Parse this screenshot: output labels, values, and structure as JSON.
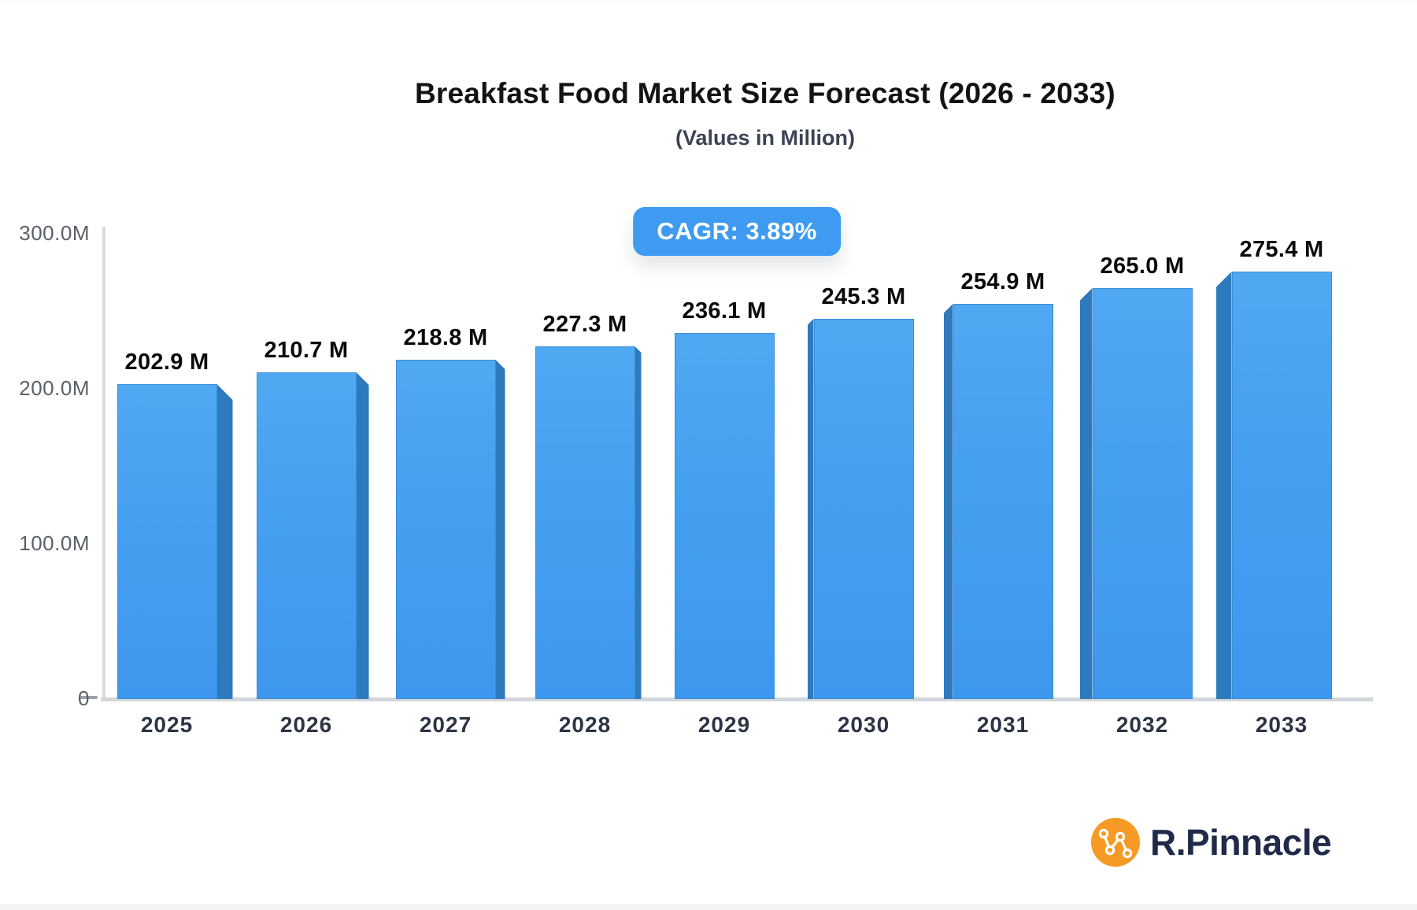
{
  "header": {
    "title": "Breakfast Food Market Size Forecast (2026 - 2033)",
    "subtitle": "(Values in Million)"
  },
  "badge": {
    "label": "CAGR: 3.89%",
    "background": "#3e9bf1",
    "text_color": "#ffffff"
  },
  "chart_data": {
    "type": "bar",
    "title": "Breakfast Food Market Size Forecast (2026 - 2033)",
    "subtitle": "(Values in Million)",
    "unit": "Million",
    "cagr_annotation": "CAGR: 3.89%",
    "categories": [
      "2025",
      "2026",
      "2027",
      "2028",
      "2029",
      "2030",
      "2031",
      "2032",
      "2033"
    ],
    "values": [
      202.9,
      210.7,
      218.8,
      227.3,
      236.1,
      245.3,
      254.9,
      265.0,
      275.4
    ],
    "value_labels": [
      "202.9 M",
      "210.7 M",
      "218.8 M",
      "227.3 M",
      "236.1 M",
      "245.3 M",
      "254.9 M",
      "265.0 M",
      "275.4 M"
    ],
    "xlabel": "",
    "ylabel": "",
    "ylim": [
      0,
      300
    ],
    "yticks": [
      {
        "value": 0,
        "label": "0"
      },
      {
        "value": 100,
        "label": "100.0M"
      },
      {
        "value": 200,
        "label": "200.0M"
      },
      {
        "value": 300,
        "label": "300.0M"
      }
    ],
    "grid": false,
    "legend": "none",
    "bar_face_color": "#46a0f0",
    "bar_side_color": "#2e7abe",
    "style": "3d-perspective-bars-facing-center"
  },
  "logo": {
    "text": "R.Pinnacle",
    "icon": "network-nodes-icon",
    "icon_background": "#f59b25",
    "text_color": "#202a49"
  }
}
